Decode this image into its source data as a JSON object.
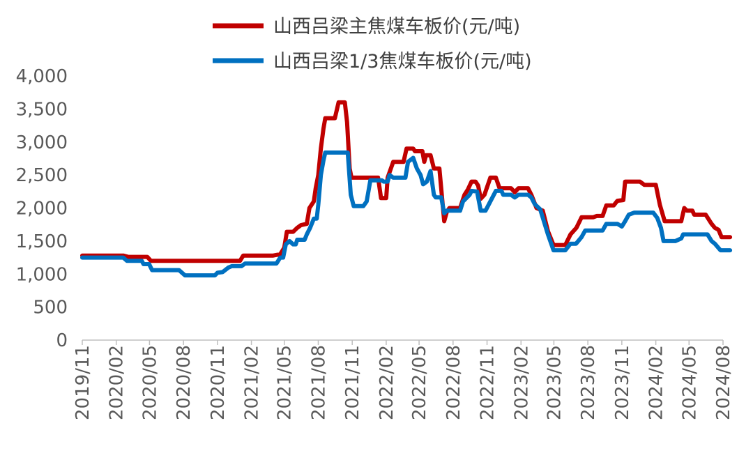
{
  "chart_data": {
    "type": "line",
    "title": "",
    "xlabel": "",
    "ylabel": "",
    "ylim": [
      0,
      4000
    ],
    "y_ticks": [
      0,
      500,
      1000,
      1500,
      2000,
      2500,
      3000,
      3500,
      4000
    ],
    "y_tick_labels": [
      "0",
      "500",
      "1,000",
      "1,500",
      "2,000",
      "2,500",
      "3,000",
      "3,500",
      "4,000"
    ],
    "x_range": [
      "2019-11",
      "2024-08"
    ],
    "x_tick_labels": [
      "2019/11",
      "2020/02",
      "2020/05",
      "2020/08",
      "2020/11",
      "2021/02",
      "2021/05",
      "2021/08",
      "2021/11",
      "2022/02",
      "2022/05",
      "2022/08",
      "2022/11",
      "2023/02",
      "2023/05",
      "2023/08",
      "2023/11",
      "2024/02",
      "2024/05",
      "2024/08"
    ],
    "grid": false,
    "legend_position": "top-center",
    "series": [
      {
        "name": "山西吕梁主焦煤车板价(元/吨)",
        "color": "#C00000",
        "points": [
          [
            "2019-11-01",
            1280
          ],
          [
            "2020-02-20",
            1280
          ],
          [
            "2020-03-05",
            1260
          ],
          [
            "2020-04-25",
            1260
          ],
          [
            "2020-05-05",
            1200
          ],
          [
            "2020-10-20",
            1200
          ],
          [
            "2021-01-01",
            1200
          ],
          [
            "2021-01-10",
            1280
          ],
          [
            "2021-04-01",
            1280
          ],
          [
            "2021-04-20",
            1300
          ],
          [
            "2021-05-01",
            1400
          ],
          [
            "2021-05-08",
            1640
          ],
          [
            "2021-05-25",
            1640
          ],
          [
            "2021-06-05",
            1700
          ],
          [
            "2021-06-15",
            1740
          ],
          [
            "2021-07-01",
            1760
          ],
          [
            "2021-07-08",
            2000
          ],
          [
            "2021-07-20",
            2100
          ],
          [
            "2021-07-25",
            2300
          ],
          [
            "2021-08-01",
            2500
          ],
          [
            "2021-08-08",
            2900
          ],
          [
            "2021-08-15",
            3200
          ],
          [
            "2021-08-20",
            3360
          ],
          [
            "2021-09-15",
            3360
          ],
          [
            "2021-09-25",
            3600
          ],
          [
            "2021-10-12",
            3600
          ],
          [
            "2021-10-18",
            3300
          ],
          [
            "2021-10-25",
            2600
          ],
          [
            "2021-10-30",
            2460
          ],
          [
            "2022-01-10",
            2460
          ],
          [
            "2022-01-18",
            2150
          ],
          [
            "2022-02-01",
            2150
          ],
          [
            "2022-02-05",
            2460
          ],
          [
            "2022-02-20",
            2700
          ],
          [
            "2022-03-20",
            2700
          ],
          [
            "2022-03-28",
            2900
          ],
          [
            "2022-04-15",
            2900
          ],
          [
            "2022-04-20",
            2860
          ],
          [
            "2022-05-10",
            2860
          ],
          [
            "2022-05-15",
            2700
          ],
          [
            "2022-05-20",
            2800
          ],
          [
            "2022-06-01",
            2800
          ],
          [
            "2022-06-10",
            2600
          ],
          [
            "2022-06-25",
            2600
          ],
          [
            "2022-07-08",
            1800
          ],
          [
            "2022-07-15",
            1940
          ],
          [
            "2022-07-22",
            2000
          ],
          [
            "2022-08-20",
            2000
          ],
          [
            "2022-09-01",
            2200
          ],
          [
            "2022-09-10",
            2280
          ],
          [
            "2022-09-20",
            2400
          ],
          [
            "2022-10-01",
            2400
          ],
          [
            "2022-10-08",
            2340
          ],
          [
            "2022-10-15",
            2140
          ],
          [
            "2022-10-25",
            2200
          ],
          [
            "2022-11-10",
            2460
          ],
          [
            "2022-11-25",
            2460
          ],
          [
            "2022-12-05",
            2300
          ],
          [
            "2023-01-05",
            2300
          ],
          [
            "2023-01-15",
            2240
          ],
          [
            "2023-01-25",
            2300
          ],
          [
            "2023-02-20",
            2300
          ],
          [
            "2023-03-01",
            2200
          ],
          [
            "2023-03-15",
            2000
          ],
          [
            "2023-04-01",
            1960
          ],
          [
            "2023-04-15",
            1650
          ],
          [
            "2023-04-30",
            1440
          ],
          [
            "2023-06-01",
            1440
          ],
          [
            "2023-06-15",
            1600
          ],
          [
            "2023-07-01",
            1700
          ],
          [
            "2023-07-15",
            1860
          ],
          [
            "2023-08-15",
            1860
          ],
          [
            "2023-08-25",
            1880
          ],
          [
            "2023-09-10",
            1880
          ],
          [
            "2023-09-20",
            2040
          ],
          [
            "2023-10-10",
            2040
          ],
          [
            "2023-10-20",
            2110
          ],
          [
            "2023-11-05",
            2120
          ],
          [
            "2023-11-10",
            2400
          ],
          [
            "2023-12-20",
            2400
          ],
          [
            "2024-01-01",
            2350
          ],
          [
            "2024-02-01",
            2350
          ],
          [
            "2024-02-12",
            2050
          ],
          [
            "2024-02-25",
            1800
          ],
          [
            "2024-04-10",
            1800
          ],
          [
            "2024-04-18",
            2000
          ],
          [
            "2024-04-25",
            1960
          ],
          [
            "2024-05-10",
            1960
          ],
          [
            "2024-05-15",
            1900
          ],
          [
            "2024-06-15",
            1900
          ],
          [
            "2024-07-01",
            1760
          ],
          [
            "2024-07-10",
            1700
          ],
          [
            "2024-07-20",
            1670
          ],
          [
            "2024-07-28",
            1560
          ],
          [
            "2024-08-20",
            1560
          ]
        ]
      },
      {
        "name": "山西吕梁1/3焦煤车板价(元/吨)",
        "color": "#0070C0",
        "points": [
          [
            "2019-11-01",
            1250
          ],
          [
            "2020-02-20",
            1250
          ],
          [
            "2020-03-01",
            1200
          ],
          [
            "2020-04-10",
            1200
          ],
          [
            "2020-04-15",
            1150
          ],
          [
            "2020-04-30",
            1150
          ],
          [
            "2020-05-08",
            1060
          ],
          [
            "2020-07-20",
            1060
          ],
          [
            "2020-08-05",
            980
          ],
          [
            "2020-10-25",
            980
          ],
          [
            "2020-11-01",
            1020
          ],
          [
            "2020-11-15",
            1030
          ],
          [
            "2020-12-01",
            1100
          ],
          [
            "2020-12-10",
            1120
          ],
          [
            "2021-01-05",
            1120
          ],
          [
            "2021-01-15",
            1160
          ],
          [
            "2021-04-10",
            1160
          ],
          [
            "2021-04-20",
            1250
          ],
          [
            "2021-04-28",
            1250
          ],
          [
            "2021-05-05",
            1450
          ],
          [
            "2021-05-15",
            1500
          ],
          [
            "2021-05-25",
            1450
          ],
          [
            "2021-06-01",
            1450
          ],
          [
            "2021-06-05",
            1520
          ],
          [
            "2021-06-25",
            1520
          ],
          [
            "2021-07-01",
            1600
          ],
          [
            "2021-07-10",
            1700
          ],
          [
            "2021-07-20",
            1840
          ],
          [
            "2021-07-28",
            1840
          ],
          [
            "2021-08-01",
            2050
          ],
          [
            "2021-08-08",
            2500
          ],
          [
            "2021-08-15",
            2720
          ],
          [
            "2021-08-20",
            2840
          ],
          [
            "2021-10-20",
            2840
          ],
          [
            "2021-10-28",
            2200
          ],
          [
            "2021-11-05",
            2030
          ],
          [
            "2021-12-01",
            2030
          ],
          [
            "2021-12-10",
            2100
          ],
          [
            "2021-12-20",
            2420
          ],
          [
            "2022-01-20",
            2420
          ],
          [
            "2022-01-25",
            2400
          ],
          [
            "2022-02-05",
            2400
          ],
          [
            "2022-02-10",
            2500
          ],
          [
            "2022-02-20",
            2460
          ],
          [
            "2022-03-25",
            2460
          ],
          [
            "2022-04-01",
            2700
          ],
          [
            "2022-04-15",
            2760
          ],
          [
            "2022-04-25",
            2600
          ],
          [
            "2022-05-05",
            2500
          ],
          [
            "2022-05-12",
            2360
          ],
          [
            "2022-05-22",
            2400
          ],
          [
            "2022-06-01",
            2560
          ],
          [
            "2022-06-10",
            2200
          ],
          [
            "2022-06-15",
            2160
          ],
          [
            "2022-06-30",
            2160
          ],
          [
            "2022-07-08",
            1920
          ],
          [
            "2022-07-15",
            1960
          ],
          [
            "2022-08-20",
            1960
          ],
          [
            "2022-08-28",
            2100
          ],
          [
            "2022-09-15",
            2200
          ],
          [
            "2022-09-20",
            2260
          ],
          [
            "2022-10-05",
            2250
          ],
          [
            "2022-10-15",
            1960
          ],
          [
            "2022-10-28",
            1960
          ],
          [
            "2022-11-10",
            2100
          ],
          [
            "2022-11-25",
            2260
          ],
          [
            "2022-12-10",
            2260
          ],
          [
            "2022-12-15",
            2200
          ],
          [
            "2023-01-05",
            2200
          ],
          [
            "2023-01-15",
            2160
          ],
          [
            "2023-01-25",
            2200
          ],
          [
            "2023-02-20",
            2200
          ],
          [
            "2023-03-01",
            2160
          ],
          [
            "2023-03-10",
            2060
          ],
          [
            "2023-03-25",
            1980
          ],
          [
            "2023-04-15",
            1600
          ],
          [
            "2023-04-30",
            1360
          ],
          [
            "2023-06-01",
            1360
          ],
          [
            "2023-06-15",
            1460
          ],
          [
            "2023-06-30",
            1460
          ],
          [
            "2023-07-15",
            1560
          ],
          [
            "2023-07-25",
            1660
          ],
          [
            "2023-09-10",
            1660
          ],
          [
            "2023-09-20",
            1760
          ],
          [
            "2023-10-20",
            1760
          ],
          [
            "2023-11-01",
            1720
          ],
          [
            "2023-11-10",
            1800
          ],
          [
            "2023-11-20",
            1900
          ],
          [
            "2023-12-05",
            1930
          ],
          [
            "2024-01-25",
            1930
          ],
          [
            "2024-02-05",
            1850
          ],
          [
            "2024-02-15",
            1700
          ],
          [
            "2024-02-22",
            1500
          ],
          [
            "2024-03-25",
            1500
          ],
          [
            "2024-04-10",
            1540
          ],
          [
            "2024-04-15",
            1600
          ],
          [
            "2024-06-20",
            1600
          ],
          [
            "2024-07-01",
            1500
          ],
          [
            "2024-07-10",
            1460
          ],
          [
            "2024-07-25",
            1360
          ],
          [
            "2024-08-20",
            1360
          ]
        ]
      }
    ]
  }
}
